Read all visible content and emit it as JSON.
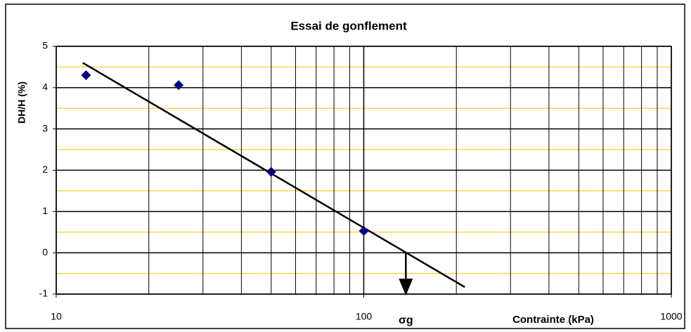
{
  "chart_data": {
    "type": "scatter",
    "title": "Essai de gonflement",
    "x_label": "Contrainte (kPa)",
    "y_label": "DH/H (%)",
    "log_x": true,
    "xlim": [
      10,
      1000
    ],
    "xticks": [
      10,
      100,
      1000
    ],
    "xminorticks": [
      20,
      30,
      40,
      50,
      60,
      70,
      80,
      90,
      200,
      300,
      400,
      500,
      600,
      700,
      800,
      900
    ],
    "ylim": [
      -1,
      5
    ],
    "yticks": [
      -1,
      0,
      1,
      2,
      3,
      4,
      5
    ],
    "yminorticks": [
      -0.5,
      0.5,
      1.5,
      2.5,
      3.5,
      4.5
    ],
    "grid": true,
    "grid_color": "#000000",
    "minor_grid_color": "#f2c200",
    "series": [
      {
        "color": "#000080",
        "x": [
          12.5,
          25,
          50,
          100
        ],
        "values": [
          4.3,
          4.06,
          1.96,
          0.53
        ]
      }
    ],
    "trendline": {
      "color": "#000000",
      "x": [
        12.2,
        213
      ],
      "values": [
        4.6,
        -0.83
      ]
    },
    "annotations": [
      {
        "text": "σg",
        "x": 137
      }
    ]
  }
}
